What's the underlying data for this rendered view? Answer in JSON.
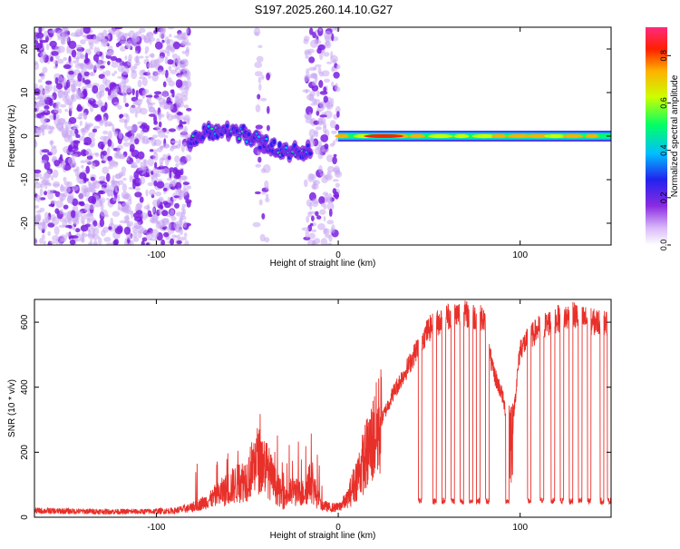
{
  "title": "S197.2025.260.14.10.G27",
  "colors": {
    "snr_line": "#e8302a",
    "speckle_purple": "#7a1fe0",
    "speckle_light": "#c9a8f2",
    "colormap": [
      "#ffffff",
      "#d8b8f8",
      "#8a2be2",
      "#2222ee",
      "#00bfff",
      "#00ff66",
      "#ccff00",
      "#ffb000",
      "#ff2000",
      "#ff2a7f"
    ]
  },
  "chart_data": [
    {
      "type": "heatmap",
      "xlabel": "Height of straight line (km)",
      "ylabel": "Frequency (Hz)",
      "xlim": [
        -167,
        150
      ],
      "ylim": [
        -25,
        25
      ],
      "x_ticks": [
        -100,
        0,
        100
      ],
      "x_tick_labels": [
        "-100",
        "0",
        "100"
      ],
      "y_ticks": [
        -20,
        -10,
        0,
        10,
        20
      ],
      "y_tick_labels": [
        "-20",
        "-10",
        "0",
        "10",
        "20"
      ],
      "colorbar": {
        "label": "Normalized spectral amplitude",
        "range": [
          0.0,
          0.92
        ],
        "ticks": [
          0.0,
          0.2,
          0.4,
          0.6,
          0.8
        ],
        "tick_labels": [
          "0.0",
          "0.2",
          "0.4",
          "0.6",
          "0.8"
        ]
      },
      "regions": [
        {
          "name": "noise",
          "x_range": [
            -167,
            -82
          ],
          "description_value": "scattered speckle"
        },
        {
          "name": "noise-strip-1",
          "x_range": [
            -45,
            -38
          ]
        },
        {
          "name": "noise-strip-2",
          "x_range": [
            -18,
            0
          ]
        },
        {
          "name": "signal-wavy",
          "x_range": [
            -82,
            -15
          ]
        },
        {
          "name": "signal-steady",
          "x_range": [
            0,
            150
          ],
          "frequency": 0
        }
      ]
    },
    {
      "type": "line",
      "xlabel": "Height of straight line (km)",
      "ylabel": "SNR (10 * v/v)",
      "xlim": [
        -167,
        150
      ],
      "ylim": [
        0,
        670
      ],
      "x_ticks": [
        -100,
        0,
        100
      ],
      "x_tick_labels": [
        "-100",
        "0",
        "100"
      ],
      "y_ticks": [
        0,
        200,
        400,
        600
      ],
      "y_tick_labels": [
        "0",
        "200",
        "400",
        "600"
      ],
      "series": [
        {
          "name": "SNR",
          "x": [
            -167,
            -140,
            -110,
            -90,
            -80,
            -70,
            -60,
            -50,
            -45,
            -40,
            -35,
            -30,
            -25,
            -20,
            -15,
            -10,
            -5,
            0,
            5,
            10,
            20,
            30,
            40,
            45,
            50,
            55,
            60,
            70,
            80,
            85,
            90,
            95,
            100,
            110,
            120,
            130,
            140,
            150
          ],
          "values": [
            20,
            18,
            17,
            20,
            30,
            55,
            90,
            120,
            180,
            160,
            100,
            60,
            80,
            70,
            110,
            40,
            30,
            30,
            55,
            120,
            250,
            380,
            480,
            540,
            580,
            600,
            620,
            625,
            610,
            450,
            380,
            240,
            520,
            580,
            610,
            620,
            600,
            600
          ],
          "dropouts": [
            45,
            53,
            58,
            63,
            68,
            73,
            77,
            82,
            93,
            105,
            112,
            118,
            123,
            128,
            133,
            138,
            145,
            149
          ],
          "dropout_level": 50
        }
      ]
    }
  ]
}
